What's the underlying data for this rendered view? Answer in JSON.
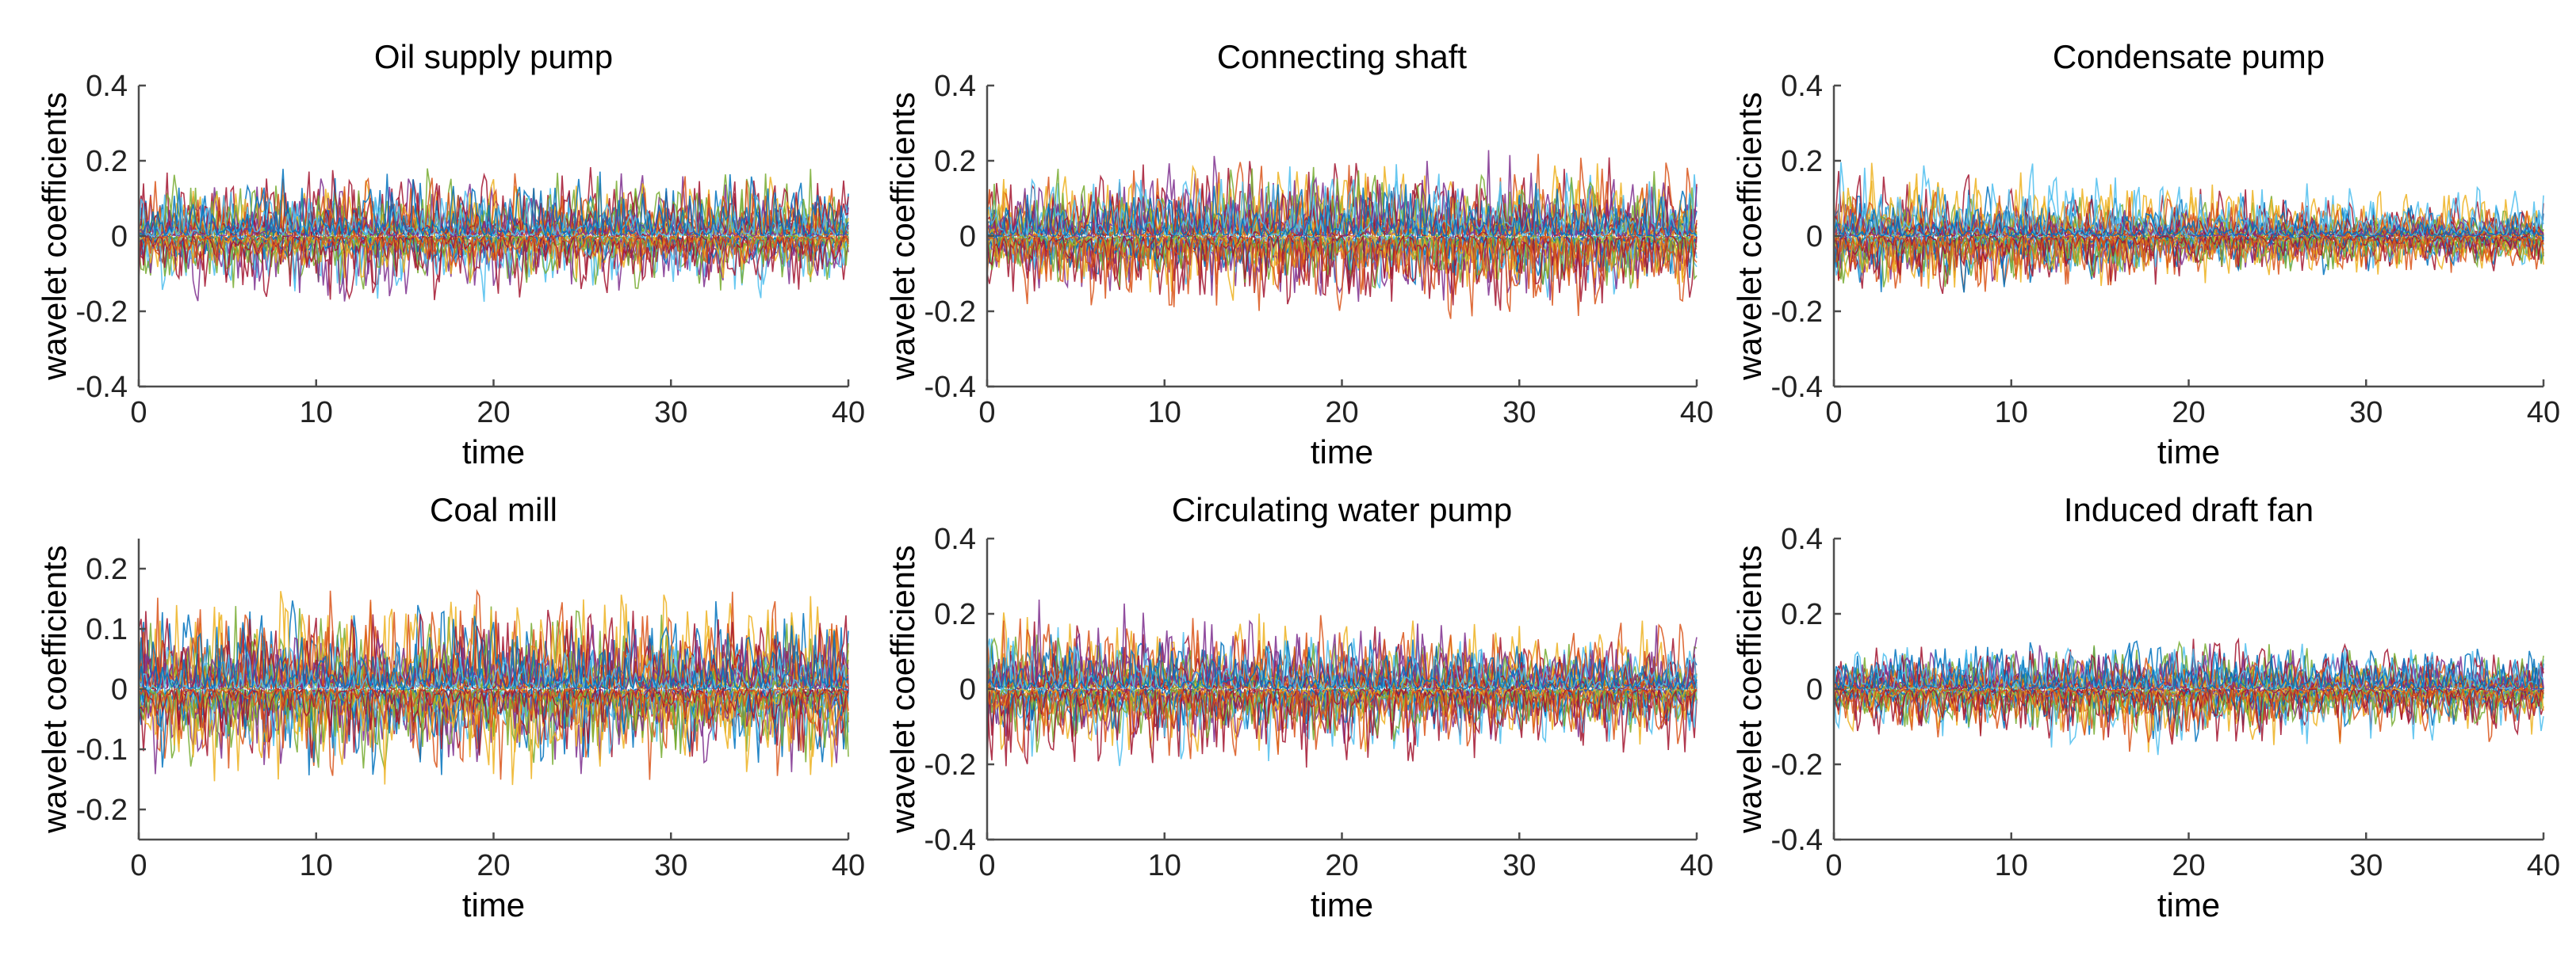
{
  "palette": [
    "#0072BD",
    "#D95319",
    "#EDB120",
    "#7E2F8E",
    "#77AC30",
    "#4DBEEE",
    "#A2142F"
  ],
  "chart_data": [
    {
      "type": "line",
      "title": "Oil supply pump",
      "xlabel": "time",
      "ylabel": "wavelet coefficients",
      "xlim": [
        0,
        40
      ],
      "ylim": [
        -0.4,
        0.4
      ],
      "xticks": [
        0,
        10,
        20,
        30,
        40
      ],
      "yticks": [
        -0.4,
        -0.2,
        0,
        0.2,
        0.4
      ],
      "ytick_labels": [
        "-0.4",
        "-0.2",
        "0",
        "0.2",
        "0.4"
      ],
      "envelope": {
        "x": [
          0,
          10,
          20,
          30,
          40
        ],
        "y_upper": [
          0.18,
          0.19,
          0.19,
          0.19,
          0.18
        ],
        "y_lower": [
          -0.17,
          -0.19,
          -0.19,
          -0.19,
          -0.17
        ]
      },
      "grid": false,
      "legend": "none"
    },
    {
      "type": "line",
      "title": "Connecting shaft",
      "xlabel": "time",
      "ylabel": "wavelet coefficients",
      "xlim": [
        0,
        40
      ],
      "ylim": [
        -0.4,
        0.4
      ],
      "xticks": [
        0,
        10,
        20,
        30,
        40
      ],
      "yticks": [
        -0.4,
        -0.2,
        0,
        0.2,
        0.4
      ],
      "ytick_labels": [
        "-0.4",
        "-0.2",
        "0",
        "0.2",
        "0.4"
      ],
      "envelope": {
        "x": [
          0,
          10,
          20,
          30,
          40
        ],
        "y_upper": [
          0.2,
          0.22,
          0.24,
          0.24,
          0.22
        ],
        "y_lower": [
          -0.2,
          -0.22,
          -0.24,
          -0.25,
          -0.22
        ]
      },
      "grid": false,
      "legend": "none"
    },
    {
      "type": "line",
      "title": "Condensate pump",
      "xlabel": "time",
      "ylabel": "wavelet coefficients",
      "xlim": [
        0,
        40
      ],
      "ylim": [
        -0.4,
        0.4
      ],
      "xticks": [
        0,
        10,
        20,
        30,
        40
      ],
      "yticks": [
        -0.4,
        -0.2,
        0,
        0.2,
        0.4
      ],
      "ytick_labels": [
        "-0.4",
        "-0.2",
        "0",
        "0.2",
        "0.4"
      ],
      "envelope": {
        "x": [
          0,
          10,
          20,
          30,
          40
        ],
        "y_upper": [
          0.22,
          0.2,
          0.17,
          0.14,
          0.13
        ],
        "y_lower": [
          -0.22,
          -0.2,
          -0.17,
          -0.14,
          -0.13
        ]
      },
      "grid": false,
      "legend": "none"
    },
    {
      "type": "line",
      "title": "Coal mill",
      "xlabel": "time",
      "ylabel": "wavelet coefficients",
      "xlim": [
        0,
        40
      ],
      "ylim": [
        -0.25,
        0.25
      ],
      "xticks": [
        0,
        10,
        20,
        30,
        40
      ],
      "yticks": [
        -0.2,
        -0.1,
        0,
        0.1,
        0.2
      ],
      "ytick_labels": [
        "-0.2",
        "-0.1",
        "0",
        "0.1",
        "0.2"
      ],
      "envelope": {
        "x": [
          0,
          10,
          20,
          30,
          40
        ],
        "y_upper": [
          0.17,
          0.17,
          0.17,
          0.17,
          0.16
        ],
        "y_lower": [
          -0.17,
          -0.17,
          -0.17,
          -0.17,
          -0.16
        ]
      },
      "grid": false,
      "legend": "none"
    },
    {
      "type": "line",
      "title": "Circulating water pump",
      "xlabel": "time",
      "ylabel": "wavelet coefficients",
      "xlim": [
        0,
        40
      ],
      "ylim": [
        -0.4,
        0.4
      ],
      "xticks": [
        0,
        10,
        20,
        30,
        40
      ],
      "yticks": [
        -0.4,
        -0.2,
        0,
        0.2,
        0.4
      ],
      "ytick_labels": [
        "-0.4",
        "-0.2",
        "0",
        "0.2",
        "0.4"
      ],
      "envelope": {
        "x": [
          0,
          10,
          20,
          30,
          40
        ],
        "y_upper": [
          0.27,
          0.26,
          0.24,
          0.21,
          0.2
        ],
        "y_lower": [
          -0.27,
          -0.26,
          -0.24,
          -0.21,
          -0.2
        ]
      },
      "grid": false,
      "legend": "none"
    },
    {
      "type": "line",
      "title": "Induced draft fan",
      "xlabel": "time",
      "ylabel": "wavelet coefficients",
      "xlim": [
        0,
        40
      ],
      "ylim": [
        -0.4,
        0.4
      ],
      "xticks": [
        0,
        10,
        20,
        30,
        40
      ],
      "yticks": [
        -0.4,
        -0.2,
        0,
        0.2,
        0.4
      ],
      "ytick_labels": [
        "-0.4",
        "-0.2",
        "0",
        "0.2",
        "0.4"
      ],
      "envelope": {
        "x": [
          0,
          10,
          20,
          30,
          40
        ],
        "y_upper": [
          0.15,
          0.17,
          0.2,
          0.16,
          0.15
        ],
        "y_lower": [
          -0.15,
          -0.17,
          -0.21,
          -0.16,
          -0.15
        ]
      },
      "grid": false,
      "legend": "none"
    }
  ]
}
